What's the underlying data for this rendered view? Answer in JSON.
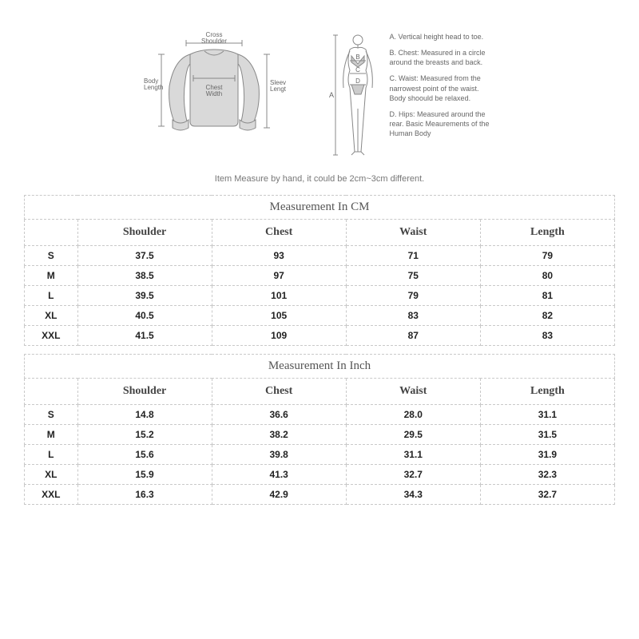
{
  "garment_labels": {
    "cross_shoulder": "Cross\nShoulder",
    "body_length": "Body\nLength",
    "chest_width": "Chest\nWidth",
    "sleeve_length": "Sleeve\nLength"
  },
  "body_labels": {
    "A": "A",
    "B": "B",
    "C": "C",
    "D": "D"
  },
  "legend": {
    "a": "A. Vertical height head to toe.",
    "b": "B. Chest: Measured in a circle around the breasts and back.",
    "c": "C. Waist: Measured from the narrowest point of the waist. Body shoould be relaxed.",
    "d": "D. Hips: Measured around the rear. Basic Meaurements of the Human Body"
  },
  "note": "Item Measure by hand, it could be 2cm~3cm different.",
  "table_cm": {
    "title": "Measurement In CM",
    "columns": [
      "Shoulder",
      "Chest",
      "Waist",
      "Length"
    ],
    "rows": [
      {
        "size": "S",
        "vals": [
          "37.5",
          "93",
          "71",
          "79"
        ]
      },
      {
        "size": "M",
        "vals": [
          "38.5",
          "97",
          "75",
          "80"
        ]
      },
      {
        "size": "L",
        "vals": [
          "39.5",
          "101",
          "79",
          "81"
        ]
      },
      {
        "size": "XL",
        "vals": [
          "40.5",
          "105",
          "83",
          "82"
        ]
      },
      {
        "size": "XXL",
        "vals": [
          "41.5",
          "109",
          "87",
          "83"
        ]
      }
    ]
  },
  "table_in": {
    "title": "Measurement In Inch",
    "columns": [
      "Shoulder",
      "Chest",
      "Waist",
      "Length"
    ],
    "rows": [
      {
        "size": "S",
        "vals": [
          "14.8",
          "36.6",
          "28.0",
          "31.1"
        ]
      },
      {
        "size": "M",
        "vals": [
          "15.2",
          "38.2",
          "29.5",
          "31.5"
        ]
      },
      {
        "size": "L",
        "vals": [
          "15.6",
          "39.8",
          "31.1",
          "31.9"
        ]
      },
      {
        "size": "XL",
        "vals": [
          "15.9",
          "41.3",
          "32.7",
          "32.3"
        ]
      },
      {
        "size": "XXL",
        "vals": [
          "16.3",
          "42.9",
          "34.3",
          "32.7"
        ]
      }
    ]
  },
  "colors": {
    "stroke": "#888888",
    "fill": "#d9d9d9",
    "text": "#666666",
    "border": "#c9c9c9"
  }
}
